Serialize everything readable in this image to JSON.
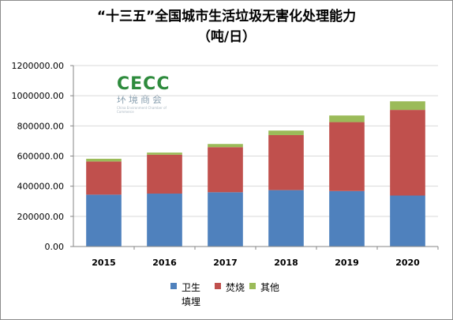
{
  "chart_data": {
    "type": "bar",
    "stacked": true,
    "title": "“十三五”全国城市生活垃圾无害化处理能力",
    "subtitle": "（吨/日）",
    "categories": [
      "2015",
      "2016",
      "2017",
      "2018",
      "2019",
      "2020"
    ],
    "series": [
      {
        "name": "卫生填埋",
        "color": "#4f81bd",
        "values": [
          344000,
          351000,
          360000,
          374000,
          368000,
          338000
        ]
      },
      {
        "name": "焚烧",
        "color": "#c0504d",
        "values": [
          220000,
          258000,
          299000,
          365000,
          457000,
          568000
        ]
      },
      {
        "name": "其他",
        "color": "#9bbb59",
        "values": [
          18000,
          14000,
          21000,
          30000,
          44000,
          57000
        ]
      }
    ],
    "ylim": [
      0,
      1200000
    ],
    "ytick_step": 200000,
    "yticks": [
      "0.00",
      "200000.00",
      "400000.00",
      "600000.00",
      "800000.00",
      "1000000.00",
      "1200000.00"
    ],
    "grid": true,
    "legend": "bottom"
  },
  "watermark": {
    "main": "CECC",
    "sub": "环境商会",
    "tiny": "China Environment Chamber of Commerce"
  }
}
